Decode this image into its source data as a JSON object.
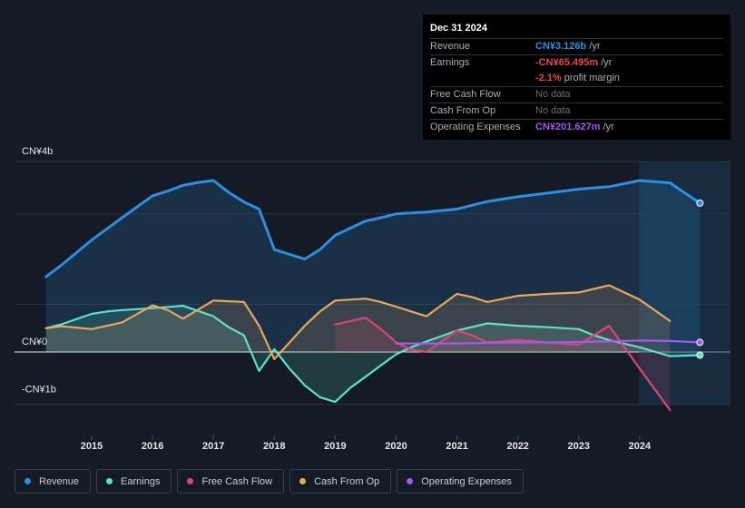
{
  "tooltip": {
    "date": "Dec 31 2024",
    "rows": [
      {
        "label": "Revenue",
        "value": "CN¥3.126b",
        "unit": "/yr",
        "color": "#2e8ee0"
      },
      {
        "label": "Earnings",
        "value": "-CN¥65.495m",
        "unit": "/yr",
        "color": "#e8474a"
      },
      {
        "label": "",
        "value": "-2.1%",
        "unit": "profit margin",
        "color": "#e8474a"
      },
      {
        "label": "Free Cash Flow",
        "value": "No data",
        "unit": "",
        "color": ""
      },
      {
        "label": "Cash From Op",
        "value": "No data",
        "unit": "",
        "color": ""
      },
      {
        "label": "Operating Expenses",
        "value": "CN¥201.627m",
        "unit": "/yr",
        "color": "#a25af0"
      }
    ]
  },
  "legend": [
    {
      "label": "Revenue",
      "color": "#2e8ee0"
    },
    {
      "label": "Earnings",
      "color": "#5fe0c8"
    },
    {
      "label": "Free Cash Flow",
      "color": "#d6477c"
    },
    {
      "label": "Cash From Op",
      "color": "#e8a85c"
    },
    {
      "label": "Operating Expenses",
      "color": "#a25af0"
    }
  ],
  "chart_data": {
    "type": "line",
    "title": "",
    "xlabel": "",
    "ylabel": "",
    "ylim": [
      -1.1,
      4.0
    ],
    "xlim": [
      2014.0,
      2025.0
    ],
    "y_tick_labels": [
      {
        "label": "CN¥4b",
        "value": 4.0
      },
      {
        "label": "CN¥0",
        "value": 0
      },
      {
        "label": "-CN¥1b",
        "value": -1.0
      }
    ],
    "x_tick_labels": [
      "2015",
      "2016",
      "2017",
      "2018",
      "2019",
      "2020",
      "2021",
      "2022",
      "2023",
      "2024"
    ],
    "forecast_start": 2023.99,
    "series": [
      {
        "name": "Revenue",
        "color": "#2e8ee0",
        "fill": true,
        "x": [
          2014.25,
          2014.5,
          2015.0,
          2015.5,
          2016.0,
          2016.25,
          2016.5,
          2016.75,
          2017.0,
          2017.25,
          2017.5,
          2017.75,
          2018.0,
          2018.25,
          2018.5,
          2018.75,
          2019.0,
          2019.25,
          2019.5,
          2019.75,
          2020.0,
          2020.5,
          2021.0,
          2021.5,
          2022.0,
          2022.5,
          2023.0,
          2023.5,
          2024.0,
          2024.5,
          2024.99
        ],
        "y": [
          1.58,
          1.82,
          2.35,
          2.82,
          3.28,
          3.38,
          3.5,
          3.56,
          3.6,
          3.35,
          3.15,
          3.0,
          2.15,
          2.05,
          1.95,
          2.15,
          2.45,
          2.6,
          2.75,
          2.82,
          2.9,
          2.94,
          3.0,
          3.16,
          3.26,
          3.34,
          3.42,
          3.47,
          3.6,
          3.55,
          3.126
        ]
      },
      {
        "name": "Earnings",
        "color": "#5fe0c8",
        "fill": true,
        "x": [
          2014.25,
          2014.5,
          2015.0,
          2015.25,
          2015.5,
          2016.0,
          2016.5,
          2017.0,
          2017.25,
          2017.5,
          2017.75,
          2018.0,
          2018.25,
          2018.5,
          2018.75,
          2019.0,
          2019.25,
          2019.5,
          2019.75,
          2020.0,
          2020.25,
          2020.5,
          2021.0,
          2021.5,
          2022.0,
          2022.5,
          2023.0,
          2023.25,
          2023.5,
          2024.0,
          2024.5,
          2024.99
        ],
        "y": [
          0.5,
          0.58,
          0.8,
          0.85,
          0.88,
          0.92,
          0.97,
          0.75,
          0.52,
          0.35,
          -0.4,
          0.06,
          -0.35,
          -0.7,
          -0.95,
          -1.05,
          -0.75,
          -0.52,
          -0.28,
          -0.05,
          0.1,
          0.22,
          0.45,
          0.6,
          0.55,
          0.52,
          0.48,
          0.35,
          0.25,
          0.1,
          -0.09,
          -0.065
        ]
      },
      {
        "name": "Free Cash Flow",
        "color": "#d6477c",
        "fill": true,
        "x": [
          2019.0,
          2019.25,
          2019.5,
          2019.75,
          2020.0,
          2020.25,
          2020.5,
          2021.0,
          2021.25,
          2021.5,
          2022.0,
          2022.5,
          2023.0,
          2023.25,
          2023.5,
          2024.0,
          2024.5
        ],
        "y": [
          0.58,
          0.65,
          0.72,
          0.48,
          0.2,
          0.05,
          0.0,
          0.45,
          0.35,
          0.2,
          0.25,
          0.2,
          0.15,
          0.35,
          0.55,
          -0.35,
          -1.22
        ]
      },
      {
        "name": "Cash From Op",
        "color": "#e8a85c",
        "fill": true,
        "x": [
          2014.25,
          2014.5,
          2015.0,
          2015.5,
          2016.0,
          2016.25,
          2016.5,
          2017.0,
          2017.5,
          2017.75,
          2018.0,
          2018.25,
          2018.5,
          2018.75,
          2019.0,
          2019.25,
          2019.5,
          2019.75,
          2020.0,
          2020.25,
          2020.5,
          2021.0,
          2021.25,
          2021.5,
          2022.0,
          2022.5,
          2023.0,
          2023.5,
          2024.0,
          2024.5
        ],
        "y": [
          0.5,
          0.54,
          0.48,
          0.62,
          0.98,
          0.88,
          0.7,
          1.08,
          1.05,
          0.55,
          -0.15,
          0.2,
          0.55,
          0.85,
          1.08,
          1.1,
          1.12,
          1.05,
          0.95,
          0.85,
          0.75,
          1.22,
          1.15,
          1.05,
          1.18,
          1.22,
          1.25,
          1.4,
          1.1,
          0.65
        ]
      },
      {
        "name": "Operating Expenses",
        "color": "#a25af0",
        "fill": false,
        "x": [
          2020.0,
          2020.5,
          2021.0,
          2021.5,
          2022.0,
          2022.5,
          2023.0,
          2023.5,
          2024.0,
          2024.5,
          2024.99
        ],
        "y": [
          0.18,
          0.18,
          0.18,
          0.19,
          0.2,
          0.2,
          0.21,
          0.22,
          0.24,
          0.23,
          0.2016
        ]
      }
    ]
  }
}
